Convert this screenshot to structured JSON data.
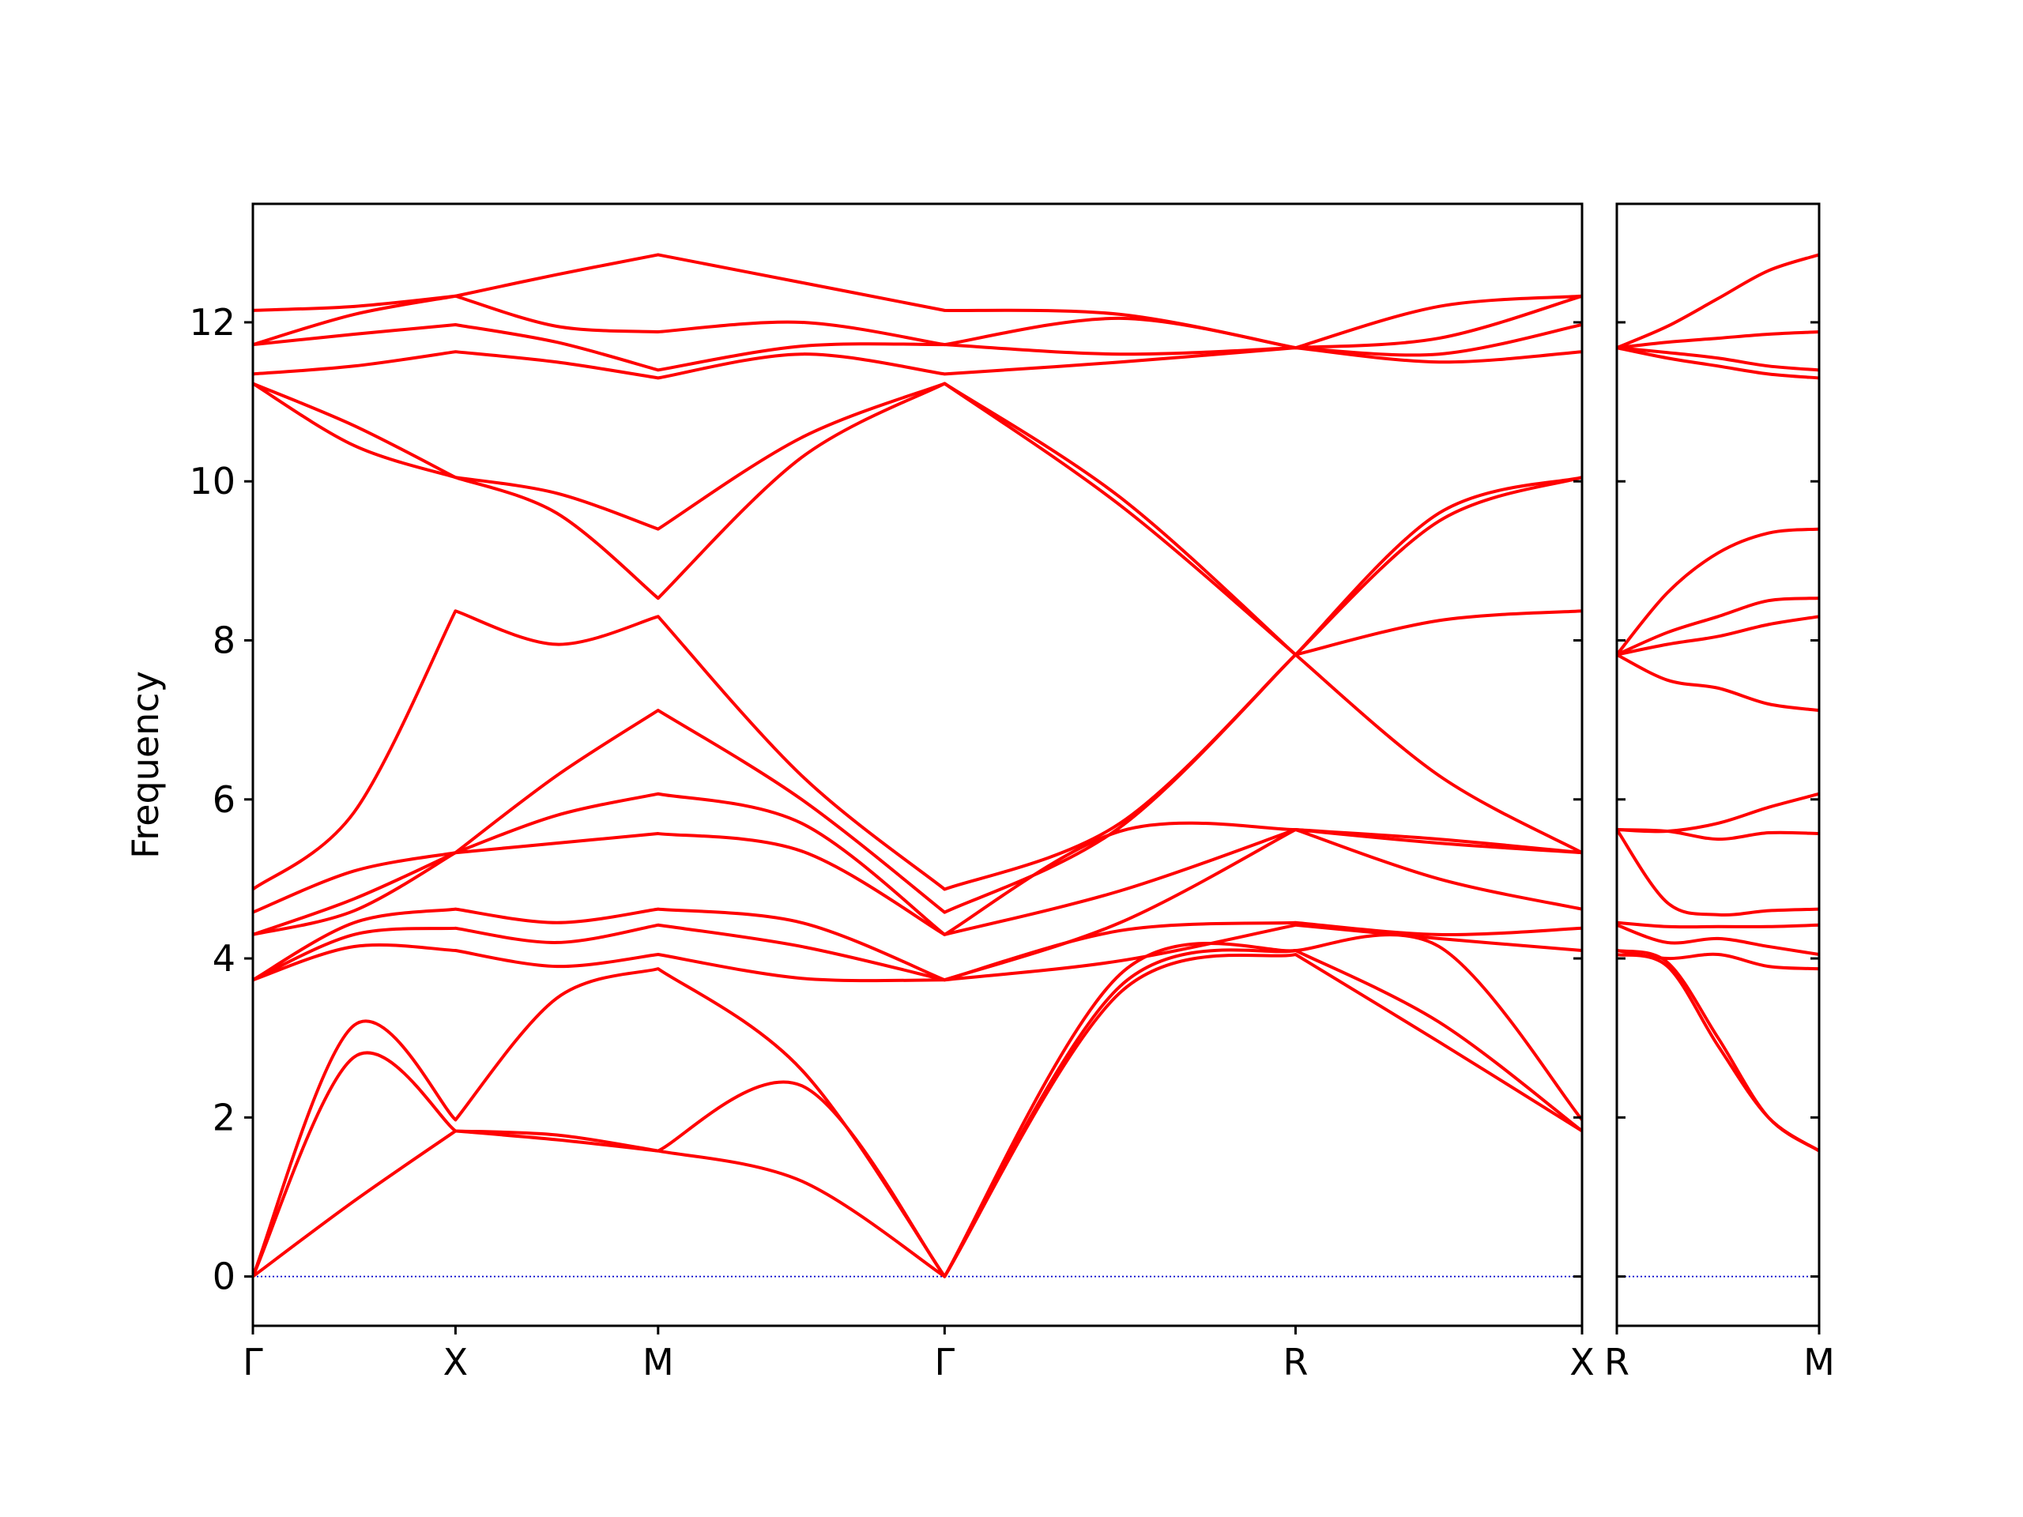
{
  "chart_data": [
    {
      "type": "line",
      "ylabel": "Frequency",
      "color": "#ff0000",
      "xlim": [
        0,
        3.28
      ],
      "ylim": [
        -0.62,
        13.49
      ],
      "xticks": [
        {
          "value": 0,
          "label": "Γ"
        },
        {
          "value": 0.5,
          "label": "X"
        },
        {
          "value": 1.0,
          "label": "M"
        },
        {
          "value": 1.707,
          "label": "Γ"
        },
        {
          "value": 2.573,
          "label": "R"
        },
        {
          "value": 3.28,
          "label": "X"
        }
      ],
      "yticks": [
        0,
        2,
        4,
        6,
        8,
        10,
        12
      ],
      "reference_line": {
        "value": 0,
        "color": "#0000cc",
        "style": "dotted"
      },
      "x": [
        0,
        0.25,
        0.5,
        0.75,
        1.0,
        1.354,
        1.707,
        2.14,
        2.573,
        2.927,
        3.28
      ],
      "series": [
        {
          "values": [
            0,
            0.95,
            1.83,
            1.72,
            1.58,
            1.2,
            0,
            3.57,
            4.05,
            2.95,
            1.83
          ]
        },
        {
          "values": [
            0,
            2.76,
            1.83,
            1.78,
            1.58,
            2.4,
            0,
            3.65,
            4.1,
            3.2,
            1.83
          ]
        },
        {
          "values": [
            0,
            3.16,
            1.97,
            3.5,
            3.87,
            2.6,
            0,
            3.8,
            4.1,
            4.15,
            1.97
          ]
        },
        {
          "values": [
            3.73,
            4.15,
            4.1,
            3.9,
            4.05,
            3.75,
            3.73,
            3.97,
            4.42,
            4.25,
            4.1
          ]
        },
        {
          "values": [
            3.73,
            4.3,
            4.38,
            4.2,
            4.42,
            4.15,
            3.73,
            4.35,
            4.45,
            4.3,
            4.38
          ]
        },
        {
          "values": [
            3.73,
            4.45,
            4.62,
            4.45,
            4.62,
            4.45,
            3.73,
            4.45,
            5.62,
            5.0,
            4.62
          ]
        },
        {
          "values": [
            4.3,
            4.6,
            5.33,
            5.45,
            5.57,
            5.35,
            4.3,
            4.85,
            5.62,
            5.45,
            5.33
          ]
        },
        {
          "values": [
            4.3,
            4.75,
            5.33,
            5.8,
            6.07,
            5.7,
            4.3,
            5.6,
            5.62,
            5.5,
            5.33
          ]
        },
        {
          "values": [
            4.58,
            5.1,
            5.33,
            6.3,
            7.12,
            6.0,
            4.58,
            5.65,
            7.82,
            6.3,
            5.33
          ]
        },
        {
          "values": [
            4.87,
            5.84,
            8.37,
            7.95,
            8.3,
            6.3,
            4.87,
            5.7,
            7.82,
            8.25,
            8.37
          ]
        },
        {
          "values": [
            11.23,
            10.45,
            10.05,
            9.6,
            8.53,
            10.3,
            11.23,
            9.7,
            7.82,
            9.5,
            10.05
          ]
        },
        {
          "values": [
            11.23,
            10.7,
            10.05,
            9.85,
            9.4,
            10.55,
            11.23,
            9.8,
            7.82,
            9.6,
            10.05
          ]
        },
        {
          "values": [
            11.35,
            11.45,
            11.63,
            11.5,
            11.3,
            11.6,
            11.35,
            11.5,
            11.68,
            11.5,
            11.63
          ]
        },
        {
          "values": [
            11.72,
            11.85,
            11.97,
            11.75,
            11.4,
            11.7,
            11.72,
            11.6,
            11.68,
            11.6,
            11.97
          ]
        },
        {
          "values": [
            11.72,
            12.1,
            12.33,
            11.95,
            11.88,
            12.0,
            11.72,
            12.05,
            11.68,
            11.8,
            12.33
          ]
        },
        {
          "values": [
            12.15,
            12.2,
            12.33,
            12.6,
            12.85,
            12.5,
            12.15,
            12.1,
            11.68,
            12.2,
            12.33
          ]
        }
      ]
    },
    {
      "type": "line",
      "color": "#ff0000",
      "ytick_labels": false,
      "xlim": [
        0,
        0.707
      ],
      "ylim": [
        -0.62,
        13.49
      ],
      "xticks": [
        {
          "value": 0,
          "label": "R"
        },
        {
          "value": 0.707,
          "label": "M"
        }
      ],
      "yticks": [
        0,
        2,
        4,
        6,
        8,
        10,
        12
      ],
      "reference_line": {
        "value": 0,
        "color": "#0000cc",
        "style": "dotted"
      },
      "x": [
        0,
        0.177,
        0.354,
        0.53,
        0.707
      ],
      "series": [
        {
          "values": [
            4.05,
            3.9,
            2.9,
            2.0,
            1.58
          ]
        },
        {
          "values": [
            4.1,
            3.95,
            3.0,
            2.0,
            1.58
          ]
        },
        {
          "values": [
            4.1,
            4.0,
            4.05,
            3.9,
            3.87
          ]
        },
        {
          "values": [
            4.42,
            4.2,
            4.25,
            4.15,
            4.05
          ]
        },
        {
          "values": [
            4.45,
            4.4,
            4.4,
            4.4,
            4.42
          ]
        },
        {
          "values": [
            5.62,
            4.7,
            4.55,
            4.6,
            4.62
          ]
        },
        {
          "values": [
            5.62,
            5.6,
            5.5,
            5.58,
            5.57
          ]
        },
        {
          "values": [
            5.62,
            5.6,
            5.7,
            5.9,
            6.07
          ]
        },
        {
          "values": [
            7.82,
            7.5,
            7.4,
            7.2,
            7.12
          ]
        },
        {
          "values": [
            7.82,
            7.95,
            8.05,
            8.2,
            8.3
          ]
        },
        {
          "values": [
            7.82,
            8.1,
            8.3,
            8.5,
            8.53
          ]
        },
        {
          "values": [
            7.82,
            8.6,
            9.1,
            9.35,
            9.4
          ]
        },
        {
          "values": [
            11.68,
            11.55,
            11.45,
            11.35,
            11.3
          ]
        },
        {
          "values": [
            11.68,
            11.62,
            11.55,
            11.45,
            11.4
          ]
        },
        {
          "values": [
            11.68,
            11.75,
            11.8,
            11.85,
            11.88
          ]
        },
        {
          "values": [
            11.68,
            11.95,
            12.3,
            12.65,
            12.85
          ]
        }
      ]
    }
  ]
}
